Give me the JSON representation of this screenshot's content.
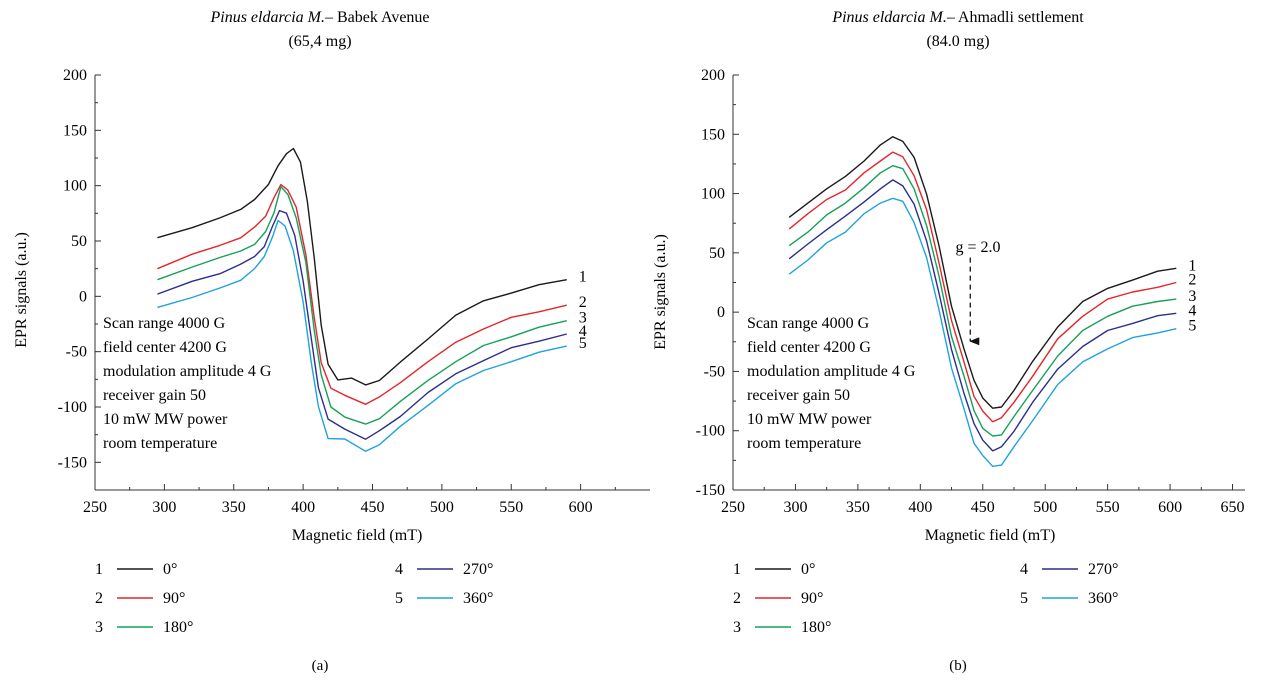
{
  "figure": {
    "panel_labels": [
      "(a)",
      "(b)"
    ]
  },
  "colors": {
    "series": [
      "#1a1a1a",
      "#e3262b",
      "#16a05a",
      "#2b2e8c",
      "#1fa3dc"
    ],
    "axis": "#333333"
  },
  "chart_data": [
    {
      "type": "line",
      "title_italic": "Pinus eldarcia M.",
      "title_rest": "– Babek Avenue",
      "subtitle": "(65,4 mg)",
      "xlabel": "Magnetic field (mT)",
      "ylabel": "EPR signals (a.u.)",
      "xlim": [
        250,
        650
      ],
      "ylim": [
        -175,
        200
      ],
      "xticks": [
        250,
        300,
        350,
        400,
        450,
        500,
        550,
        600
      ],
      "yticks": [
        -150,
        -100,
        -50,
        0,
        50,
        100,
        150,
        200
      ],
      "annotation_lines": [
        "Scan range 4000 G",
        "field center 4200 G",
        "modulation amplitude 4 G",
        "receiver gain 50",
        "10 mW MW power",
        "room temperature"
      ],
      "curve_labels": [
        "1",
        "2",
        "3",
        "4",
        "5"
      ],
      "legend": [
        {
          "num": "1",
          "label": "0°"
        },
        {
          "num": "2",
          "label": "90°"
        },
        {
          "num": "3",
          "label": "180°"
        },
        {
          "num": "4",
          "label": "270°"
        },
        {
          "num": "5",
          "label": "360°"
        }
      ],
      "panel_label": "(a)",
      "series": [
        {
          "name": "0°",
          "points": [
            [
              295,
              53
            ],
            [
              320,
              62
            ],
            [
              340,
              72
            ],
            [
              355,
              78
            ],
            [
              365,
              88
            ],
            [
              375,
              100
            ],
            [
              382,
              118
            ],
            [
              388,
              130
            ],
            [
              393,
              133
            ],
            [
              398,
              122
            ],
            [
              403,
              85
            ],
            [
              408,
              35
            ],
            [
              413,
              -25
            ],
            [
              418,
              -62
            ],
            [
              425,
              -75
            ],
            [
              435,
              -75
            ],
            [
              445,
              -80
            ],
            [
              455,
              -75
            ],
            [
              470,
              -60
            ],
            [
              490,
              -38
            ],
            [
              510,
              -18
            ],
            [
              530,
              -4
            ],
            [
              550,
              4
            ],
            [
              570,
              10
            ],
            [
              590,
              15
            ]
          ]
        },
        {
          "name": "90°",
          "points": [
            [
              295,
              25
            ],
            [
              320,
              37
            ],
            [
              340,
              46
            ],
            [
              355,
              54
            ],
            [
              365,
              62
            ],
            [
              373,
              73
            ],
            [
              379,
              88
            ],
            [
              384,
              101
            ],
            [
              389,
              97
            ],
            [
              395,
              80
            ],
            [
              402,
              38
            ],
            [
              408,
              -20
            ],
            [
              413,
              -60
            ],
            [
              420,
              -82
            ],
            [
              430,
              -90
            ],
            [
              445,
              -97
            ],
            [
              455,
              -92
            ],
            [
              470,
              -78
            ],
            [
              490,
              -58
            ],
            [
              510,
              -42
            ],
            [
              530,
              -29
            ],
            [
              550,
              -20
            ],
            [
              570,
              -14
            ],
            [
              590,
              -8
            ]
          ]
        },
        {
          "name": "180°",
          "points": [
            [
              295,
              15
            ],
            [
              320,
              27
            ],
            [
              340,
              34
            ],
            [
              355,
              41
            ],
            [
              365,
              48
            ],
            [
              373,
              58
            ],
            [
              379,
              76
            ],
            [
              384,
              98
            ],
            [
              389,
              92
            ],
            [
              395,
              72
            ],
            [
              402,
              30
            ],
            [
              408,
              -30
            ],
            [
              413,
              -72
            ],
            [
              420,
              -100
            ],
            [
              430,
              -108
            ],
            [
              445,
              -116
            ],
            [
              455,
              -110
            ],
            [
              470,
              -96
            ],
            [
              490,
              -76
            ],
            [
              510,
              -58
            ],
            [
              530,
              -45
            ],
            [
              550,
              -36
            ],
            [
              570,
              -29
            ],
            [
              590,
              -22
            ]
          ]
        },
        {
          "name": "270°",
          "points": [
            [
              295,
              2
            ],
            [
              320,
              13
            ],
            [
              340,
              21
            ],
            [
              355,
              28
            ],
            [
              365,
              36
            ],
            [
              372,
              46
            ],
            [
              378,
              63
            ],
            [
              383,
              78
            ],
            [
              388,
              74
            ],
            [
              394,
              55
            ],
            [
              400,
              15
            ],
            [
              406,
              -40
            ],
            [
              411,
              -82
            ],
            [
              418,
              -112
            ],
            [
              430,
              -120
            ],
            [
              445,
              -128
            ],
            [
              455,
              -122
            ],
            [
              470,
              -108
            ],
            [
              490,
              -88
            ],
            [
              510,
              -70
            ],
            [
              530,
              -57
            ],
            [
              550,
              -47
            ],
            [
              570,
              -40
            ],
            [
              590,
              -34
            ]
          ]
        },
        {
          "name": "360°",
          "points": [
            [
              295,
              -10
            ],
            [
              320,
              0
            ],
            [
              340,
              7
            ],
            [
              355,
              15
            ],
            [
              365,
              24
            ],
            [
              372,
              36
            ],
            [
              378,
              55
            ],
            [
              382,
              68
            ],
            [
              387,
              64
            ],
            [
              393,
              40
            ],
            [
              400,
              -5
            ],
            [
              406,
              -60
            ],
            [
              411,
              -100
            ],
            [
              418,
              -128
            ],
            [
              430,
              -130
            ],
            [
              445,
              -140
            ],
            [
              455,
              -133
            ],
            [
              470,
              -118
            ],
            [
              490,
              -98
            ],
            [
              510,
              -80
            ],
            [
              530,
              -67
            ],
            [
              550,
              -58
            ],
            [
              570,
              -51
            ],
            [
              590,
              -45
            ]
          ]
        }
      ]
    },
    {
      "type": "line",
      "title_italic": "Pinus eldarcia M.",
      "title_rest": "– Ahmadli settlement",
      "subtitle": "(84.0 mg)",
      "xlabel": "Magnetic field (mT)",
      "ylabel": "EPR signals (a.u.)",
      "xlim": [
        250,
        660
      ],
      "ylim": [
        -150,
        200
      ],
      "xticks": [
        250,
        300,
        350,
        400,
        450,
        500,
        550,
        600,
        650
      ],
      "yticks": [
        -150,
        -100,
        -50,
        0,
        50,
        100,
        150,
        200
      ],
      "annotation_lines": [
        "Scan range 4000 G",
        "field center 4200 G",
        "modulation amplitude 4 G",
        "receiver gain 50",
        "10 mW MW power",
        "room temperature"
      ],
      "g_annotation": {
        "text": "g = 2.0",
        "x": 440,
        "y_from": 46,
        "y_to": -33
      },
      "curve_labels": [
        "1",
        "2",
        "3",
        "4",
        "5"
      ],
      "legend": [
        {
          "num": "1",
          "label": "0°"
        },
        {
          "num": "2",
          "label": "90°"
        },
        {
          "num": "3",
          "label": "180°"
        },
        {
          "num": "4",
          "label": "270°"
        },
        {
          "num": "5",
          "label": "360°"
        }
      ],
      "panel_label": "(b)",
      "series": [
        {
          "name": "0°",
          "points": [
            [
              295,
              80
            ],
            [
              310,
              92
            ],
            [
              325,
              105
            ],
            [
              340,
              114
            ],
            [
              355,
              128
            ],
            [
              368,
              140
            ],
            [
              378,
              148
            ],
            [
              386,
              145
            ],
            [
              395,
              130
            ],
            [
              405,
              100
            ],
            [
              415,
              55
            ],
            [
              425,
              5
            ],
            [
              435,
              -30
            ],
            [
              443,
              -58
            ],
            [
              450,
              -72
            ],
            [
              458,
              -82
            ],
            [
              465,
              -80
            ],
            [
              475,
              -65
            ],
            [
              490,
              -42
            ],
            [
              510,
              -12
            ],
            [
              530,
              8
            ],
            [
              550,
              20
            ],
            [
              570,
              28
            ],
            [
              590,
              34
            ],
            [
              605,
              37
            ]
          ]
        },
        {
          "name": "90°",
          "points": [
            [
              295,
              70
            ],
            [
              310,
              82
            ],
            [
              325,
              95
            ],
            [
              340,
              104
            ],
            [
              355,
              117
            ],
            [
              368,
              128
            ],
            [
              378,
              134
            ],
            [
              386,
              131
            ],
            [
              395,
              116
            ],
            [
              405,
              86
            ],
            [
              415,
              42
            ],
            [
              425,
              -8
            ],
            [
              435,
              -42
            ],
            [
              443,
              -70
            ],
            [
              450,
              -84
            ],
            [
              458,
              -92
            ],
            [
              465,
              -90
            ],
            [
              475,
              -76
            ],
            [
              490,
              -53
            ],
            [
              510,
              -23
            ],
            [
              530,
              -3
            ],
            [
              550,
              10
            ],
            [
              570,
              17
            ],
            [
              590,
              22
            ],
            [
              605,
              25
            ]
          ]
        },
        {
          "name": "180°",
          "points": [
            [
              295,
              56
            ],
            [
              310,
              68
            ],
            [
              325,
              81
            ],
            [
              340,
              92
            ],
            [
              355,
              106
            ],
            [
              368,
              117
            ],
            [
              378,
              124
            ],
            [
              386,
              120
            ],
            [
              395,
              104
            ],
            [
              405,
              74
            ],
            [
              415,
              30
            ],
            [
              425,
              -20
            ],
            [
              435,
              -55
            ],
            [
              443,
              -83
            ],
            [
              450,
              -97
            ],
            [
              458,
              -105
            ],
            [
              465,
              -103
            ],
            [
              475,
              -89
            ],
            [
              490,
              -66
            ],
            [
              510,
              -36
            ],
            [
              530,
              -16
            ],
            [
              550,
              -3
            ],
            [
              570,
              4
            ],
            [
              590,
              9
            ],
            [
              605,
              11
            ]
          ]
        },
        {
          "name": "270°",
          "points": [
            [
              295,
              45
            ],
            [
              310,
              57
            ],
            [
              325,
              70
            ],
            [
              340,
              80
            ],
            [
              355,
              93
            ],
            [
              368,
              105
            ],
            [
              378,
              111
            ],
            [
              386,
              107
            ],
            [
              395,
              90
            ],
            [
              405,
              60
            ],
            [
              415,
              17
            ],
            [
              425,
              -32
            ],
            [
              435,
              -68
            ],
            [
              443,
              -95
            ],
            [
              450,
              -108
            ],
            [
              458,
              -116
            ],
            [
              465,
              -114
            ],
            [
              475,
              -100
            ],
            [
              490,
              -77
            ],
            [
              510,
              -48
            ],
            [
              530,
              -28
            ],
            [
              550,
              -16
            ],
            [
              570,
              -9
            ],
            [
              590,
              -4
            ],
            [
              605,
              -1
            ]
          ]
        },
        {
          "name": "360°",
          "points": [
            [
              295,
              32
            ],
            [
              310,
              45
            ],
            [
              325,
              58
            ],
            [
              340,
              68
            ],
            [
              355,
              82
            ],
            [
              368,
              92
            ],
            [
              378,
              97
            ],
            [
              386,
              93
            ],
            [
              395,
              76
            ],
            [
              405,
              45
            ],
            [
              415,
              2
            ],
            [
              425,
              -46
            ],
            [
              435,
              -82
            ],
            [
              443,
              -110
            ],
            [
              450,
              -122
            ],
            [
              458,
              -130
            ],
            [
              465,
              -128
            ],
            [
              475,
              -114
            ],
            [
              490,
              -91
            ],
            [
              510,
              -62
            ],
            [
              530,
              -42
            ],
            [
              550,
              -30
            ],
            [
              570,
              -22
            ],
            [
              590,
              -17
            ],
            [
              605,
              -14
            ]
          ]
        }
      ]
    }
  ]
}
